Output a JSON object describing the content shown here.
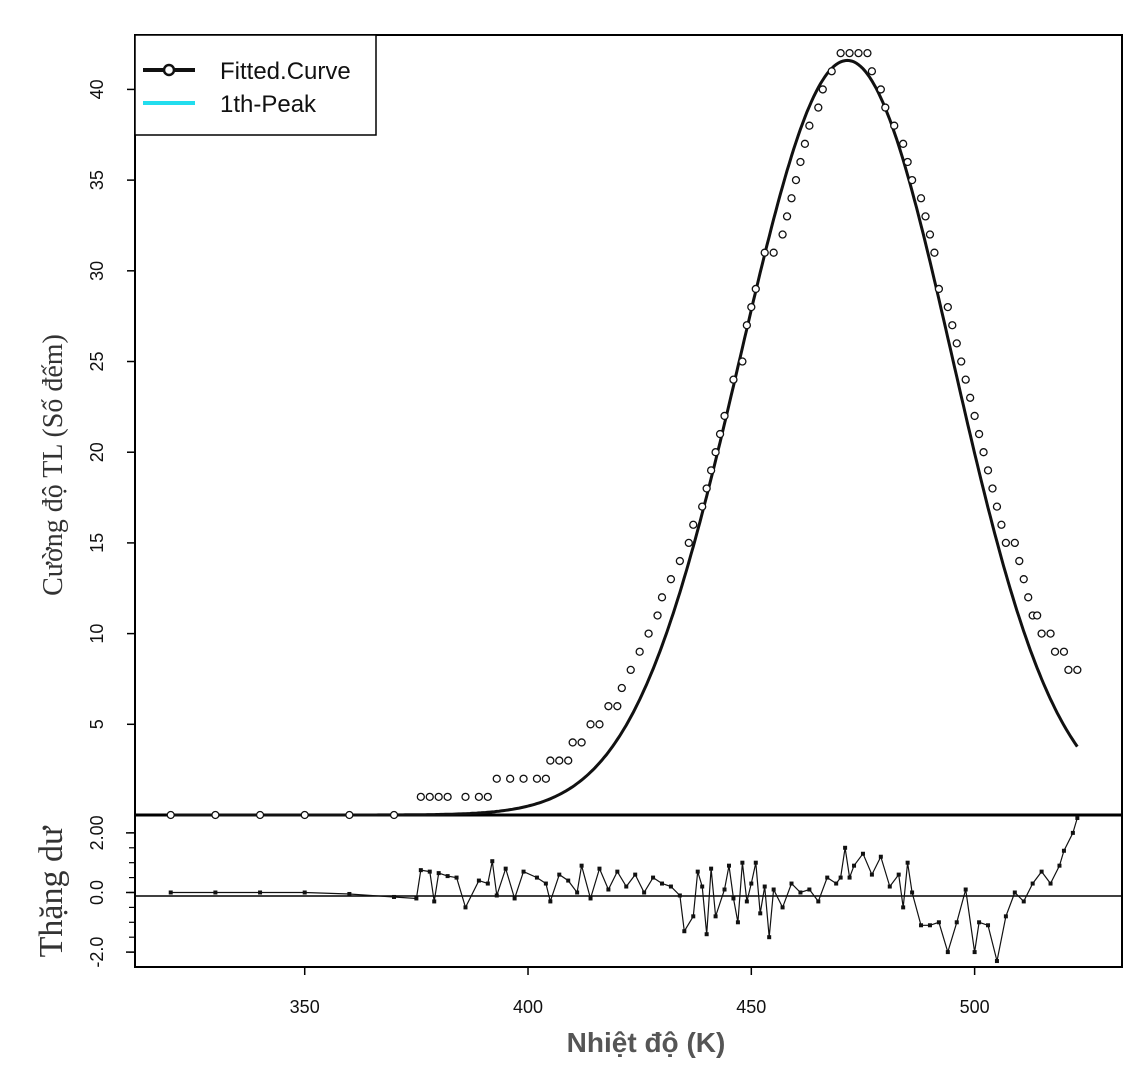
{
  "chart_data": {
    "type": "scatter",
    "xlabel": "Nhiệt độ (K)",
    "xlim": [
      312,
      533
    ],
    "x_ticks": [
      350,
      400,
      450,
      500
    ],
    "top_panel": {
      "ylabel": "Cường độ TL (Số đếm)",
      "ylim": [
        0,
        43
      ],
      "y_ticks": [
        5,
        10,
        15,
        20,
        25,
        30,
        35,
        40
      ],
      "legend_position": "top-left",
      "legend": [
        {
          "name": "Fitted.Curve",
          "color": "#111111",
          "marker": "circle"
        },
        {
          "name": "1th-Peak",
          "color": "#22ddee",
          "marker": "none"
        }
      ],
      "fitted_curve": {
        "peak_x": 471.5,
        "peak_y": 41.6,
        "sigma_left": 24,
        "sigma_right": 23.5,
        "x_range": [
          320,
          523
        ]
      },
      "points": [
        [
          320,
          0
        ],
        [
          330,
          0
        ],
        [
          340,
          0
        ],
        [
          350,
          0
        ],
        [
          360,
          0
        ],
        [
          370,
          0
        ],
        [
          376,
          1
        ],
        [
          378,
          1
        ],
        [
          380,
          1
        ],
        [
          382,
          1
        ],
        [
          386,
          1
        ],
        [
          389,
          1
        ],
        [
          391,
          1
        ],
        [
          393,
          2
        ],
        [
          396,
          2
        ],
        [
          399,
          2
        ],
        [
          402,
          2
        ],
        [
          404,
          2
        ],
        [
          405,
          3
        ],
        [
          407,
          3
        ],
        [
          409,
          3
        ],
        [
          410,
          4
        ],
        [
          412,
          4
        ],
        [
          414,
          5
        ],
        [
          416,
          5
        ],
        [
          418,
          6
        ],
        [
          420,
          6
        ],
        [
          421,
          7
        ],
        [
          423,
          8
        ],
        [
          425,
          9
        ],
        [
          427,
          10
        ],
        [
          429,
          11
        ],
        [
          430,
          12
        ],
        [
          432,
          13
        ],
        [
          434,
          14
        ],
        [
          436,
          15
        ],
        [
          437,
          16
        ],
        [
          439,
          17
        ],
        [
          440,
          18
        ],
        [
          441,
          19
        ],
        [
          442,
          20
        ],
        [
          443,
          21
        ],
        [
          444,
          22
        ],
        [
          446,
          24
        ],
        [
          448,
          25
        ],
        [
          449,
          27
        ],
        [
          450,
          28
        ],
        [
          451,
          29
        ],
        [
          453,
          31
        ],
        [
          455,
          31
        ],
        [
          457,
          32
        ],
        [
          458,
          33
        ],
        [
          459,
          34
        ],
        [
          460,
          35
        ],
        [
          461,
          36
        ],
        [
          462,
          37
        ],
        [
          463,
          38
        ],
        [
          465,
          39
        ],
        [
          466,
          40
        ],
        [
          468,
          41
        ],
        [
          470,
          42
        ],
        [
          472,
          42
        ],
        [
          474,
          42
        ],
        [
          476,
          42
        ],
        [
          477,
          41
        ],
        [
          479,
          40
        ],
        [
          480,
          39
        ],
        [
          482,
          38
        ],
        [
          484,
          37
        ],
        [
          485,
          36
        ],
        [
          486,
          35
        ],
        [
          488,
          34
        ],
        [
          489,
          33
        ],
        [
          490,
          32
        ],
        [
          491,
          31
        ],
        [
          492,
          29
        ],
        [
          494,
          28
        ],
        [
          495,
          27
        ],
        [
          496,
          26
        ],
        [
          497,
          25
        ],
        [
          498,
          24
        ],
        [
          499,
          23
        ],
        [
          500,
          22
        ],
        [
          501,
          21
        ],
        [
          502,
          20
        ],
        [
          503,
          19
        ],
        [
          504,
          18
        ],
        [
          505,
          17
        ],
        [
          506,
          16
        ],
        [
          507,
          15
        ],
        [
          509,
          15
        ],
        [
          510,
          14
        ],
        [
          511,
          13
        ],
        [
          512,
          12
        ],
        [
          513,
          11
        ],
        [
          514,
          11
        ],
        [
          515,
          10
        ],
        [
          517,
          10
        ],
        [
          518,
          9
        ],
        [
          520,
          9
        ],
        [
          521,
          8
        ],
        [
          523,
          8
        ]
      ]
    },
    "bottom_panel": {
      "ylabel": "Thặng dư",
      "ylim": [
        -2.5,
        2.6
      ],
      "y_ticks": [
        -2.0,
        0.0,
        2.0
      ],
      "y_tick_labels": [
        "-2.0",
        "0.0",
        "2.00"
      ],
      "zero_line": true,
      "residuals": [
        [
          320,
          0.0
        ],
        [
          330,
          0.0
        ],
        [
          340,
          0.0
        ],
        [
          350,
          0.0
        ],
        [
          360,
          -0.05
        ],
        [
          370,
          -0.15
        ],
        [
          375,
          -0.2
        ],
        [
          376,
          0.75
        ],
        [
          378,
          0.7
        ],
        [
          379,
          -0.3
        ],
        [
          380,
          0.65
        ],
        [
          382,
          0.55
        ],
        [
          384,
          0.5
        ],
        [
          386,
          -0.5
        ],
        [
          389,
          0.4
        ],
        [
          391,
          0.3
        ],
        [
          392,
          1.05
        ],
        [
          393,
          -0.1
        ],
        [
          395,
          0.8
        ],
        [
          397,
          -0.2
        ],
        [
          399,
          0.7
        ],
        [
          402,
          0.5
        ],
        [
          404,
          0.3
        ],
        [
          405,
          -0.3
        ],
        [
          407,
          0.6
        ],
        [
          409,
          0.4
        ],
        [
          411,
          0.0
        ],
        [
          412,
          0.9
        ],
        [
          414,
          -0.2
        ],
        [
          416,
          0.8
        ],
        [
          418,
          0.1
        ],
        [
          420,
          0.7
        ],
        [
          422,
          0.2
        ],
        [
          424,
          0.6
        ],
        [
          426,
          0.0
        ],
        [
          428,
          0.5
        ],
        [
          430,
          0.3
        ],
        [
          432,
          0.2
        ],
        [
          434,
          -0.1
        ],
        [
          435,
          -1.3
        ],
        [
          437,
          -0.8
        ],
        [
          438,
          0.7
        ],
        [
          439,
          0.2
        ],
        [
          440,
          -1.4
        ],
        [
          441,
          0.8
        ],
        [
          442,
          -0.8
        ],
        [
          444,
          0.1
        ],
        [
          445,
          0.9
        ],
        [
          446,
          -0.2
        ],
        [
          447,
          -1.0
        ],
        [
          448,
          1.0
        ],
        [
          449,
          -0.3
        ],
        [
          450,
          0.3
        ],
        [
          451,
          1.0
        ],
        [
          452,
          -0.7
        ],
        [
          453,
          0.2
        ],
        [
          454,
          -1.5
        ],
        [
          455,
          0.1
        ],
        [
          457,
          -0.5
        ],
        [
          459,
          0.3
        ],
        [
          461,
          0.0
        ],
        [
          463,
          0.1
        ],
        [
          465,
          -0.3
        ],
        [
          467,
          0.5
        ],
        [
          469,
          0.3
        ],
        [
          470,
          0.5
        ],
        [
          471,
          1.5
        ],
        [
          472,
          0.5
        ],
        [
          473,
          0.9
        ],
        [
          475,
          1.3
        ],
        [
          477,
          0.6
        ],
        [
          479,
          1.2
        ],
        [
          481,
          0.2
        ],
        [
          483,
          0.6
        ],
        [
          484,
          -0.5
        ],
        [
          485,
          1.0
        ],
        [
          486,
          0.0
        ],
        [
          488,
          -1.1
        ],
        [
          490,
          -1.1
        ],
        [
          492,
          -1.0
        ],
        [
          494,
          -2.0
        ],
        [
          496,
          -1.0
        ],
        [
          498,
          0.1
        ],
        [
          500,
          -2.0
        ],
        [
          501,
          -1.0
        ],
        [
          503,
          -1.1
        ],
        [
          505,
          -2.3
        ],
        [
          507,
          -0.8
        ],
        [
          509,
          0.0
        ],
        [
          511,
          -0.3
        ],
        [
          513,
          0.3
        ],
        [
          515,
          0.7
        ],
        [
          517,
          0.3
        ],
        [
          519,
          0.9
        ],
        [
          520,
          1.4
        ],
        [
          522,
          2.0
        ],
        [
          523,
          2.5
        ]
      ]
    }
  }
}
